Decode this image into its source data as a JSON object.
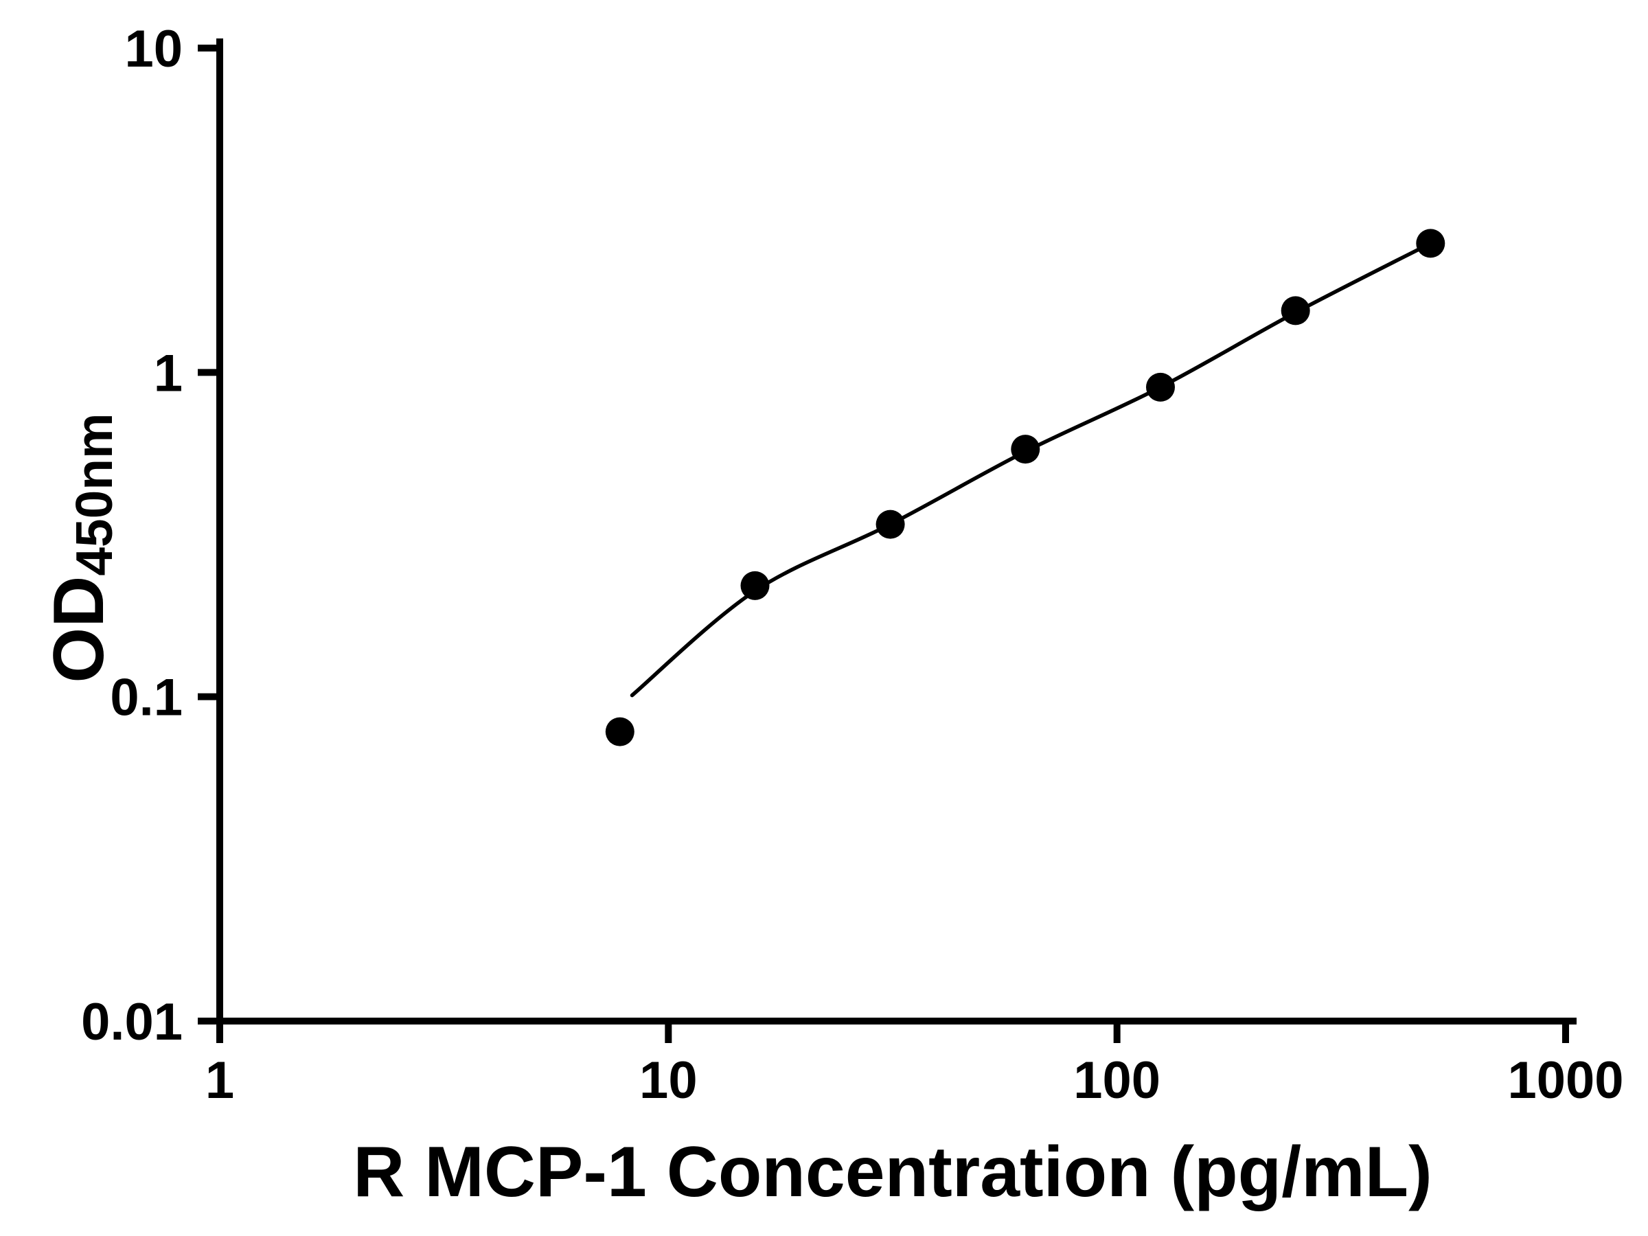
{
  "figure": {
    "background": "#ffffff",
    "axis_color": "#000000",
    "point_color": "#000000",
    "line_color": "#000000"
  },
  "chart_data": {
    "type": "scatter",
    "title": "",
    "xlabel": "R MCP-1 Concentration (pg/mL)",
    "ylabel": "OD",
    "ylabel_subscript": "450nm",
    "x_scale": "log10",
    "y_scale": "log10",
    "xlim": [
      1,
      1000
    ],
    "ylim": [
      0.01,
      10
    ],
    "x_ticks": [
      1,
      10,
      100,
      1000
    ],
    "x_tick_labels": [
      "1",
      "10",
      "100",
      "1000"
    ],
    "y_ticks": [
      0.01,
      0.1,
      1,
      10
    ],
    "y_tick_labels": [
      "0.01",
      "0.1",
      "1",
      "10"
    ],
    "grid": false,
    "legend": false,
    "series": [
      {
        "name": "standard-data-points",
        "type": "scatter",
        "marker": "filled-circle",
        "points": [
          {
            "x": 7.8,
            "y": 0.078
          },
          {
            "x": 15.6,
            "y": 0.22
          },
          {
            "x": 31.25,
            "y": 0.34
          },
          {
            "x": 62.5,
            "y": 0.58
          },
          {
            "x": 125,
            "y": 0.9
          },
          {
            "x": 250,
            "y": 1.55
          },
          {
            "x": 500,
            "y": 2.5
          }
        ]
      },
      {
        "name": "fit-curve",
        "type": "line",
        "points": [
          {
            "x": 8.3,
            "y": 0.101
          },
          {
            "x": 15.6,
            "y": 0.212
          },
          {
            "x": 31.25,
            "y": 0.34
          },
          {
            "x": 62.5,
            "y": 0.57
          },
          {
            "x": 125,
            "y": 0.9
          },
          {
            "x": 250,
            "y": 1.53
          },
          {
            "x": 500,
            "y": 2.5
          }
        ]
      }
    ]
  }
}
